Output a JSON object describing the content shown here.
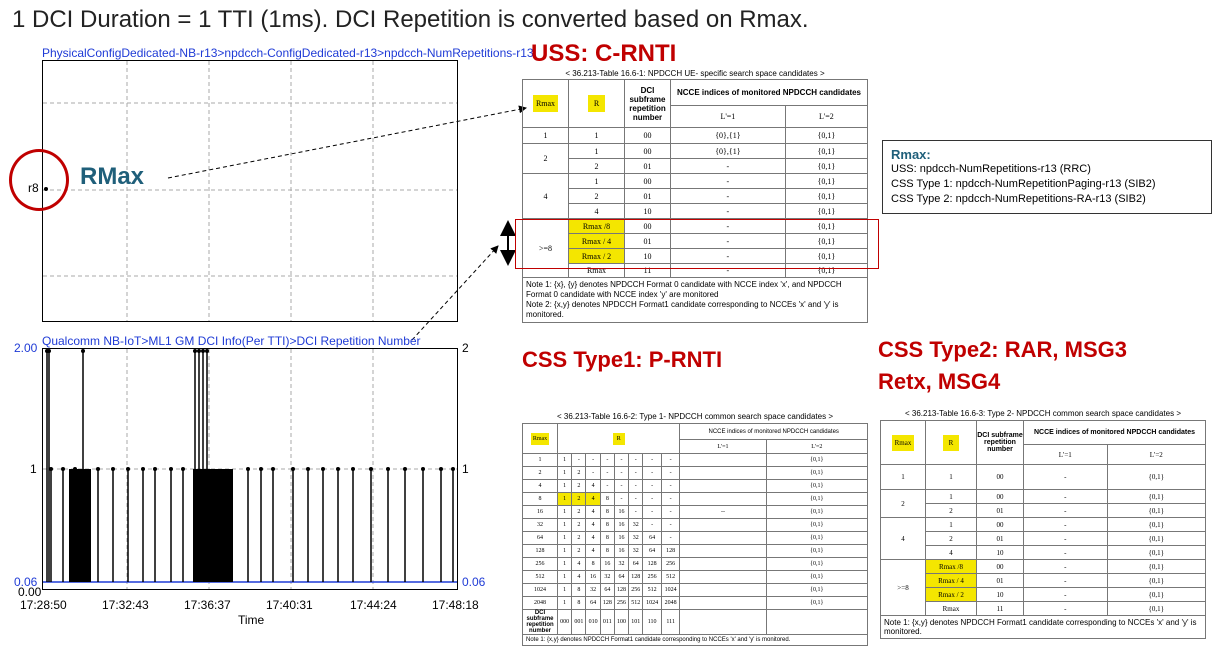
{
  "title": "1 DCI Duration = 1 TTI (1ms). DCI Repetition is converted based on Rmax.",
  "top_chart": {
    "path": "PhysicalConfigDedicated-NB-r13>npdcch-ConfigDedicated-r13>npdcch-NumRepetitions-r13",
    "y_label": "r8",
    "annotation": "RMax"
  },
  "bottom_chart": {
    "path": "Qualcomm NB-IoT>ML1 GM DCI Info(Per TTI)>DCI Repetition Number",
    "y_ticks_left": [
      "2.00",
      "1",
      "0.06",
      "0.00"
    ],
    "y_ticks_right": [
      "2",
      "1",
      "0.06"
    ],
    "x_ticks": [
      "17:28:50",
      "17:32:43",
      "17:36:37",
      "17:40:31",
      "17:44:24",
      "17:48:18"
    ],
    "x_label": "Time"
  },
  "chart_data": {
    "type": "line",
    "title": "",
    "xlabel": "Time",
    "ylabel": "",
    "ylim": [
      0,
      2
    ],
    "x_categories": [
      "17:28:50",
      "17:32:43",
      "17:36:37",
      "17:40:31",
      "17:44:24",
      "17:48:18"
    ],
    "series": [
      {
        "values_level": [
          2,
          1,
          0.06
        ]
      }
    ]
  },
  "uss": {
    "heading": "USS: C-RNTI",
    "caption": "< 36.213-Table 16.6-1: NPDCCH UE- specific search space candidates >",
    "h_rmax": "Rmax",
    "h_r": "R",
    "h_dci": "DCI subframe repetition number",
    "h_ncce": "NCCE indices of monitored NPDCCH candidates",
    "h_l1": "L'=1",
    "h_l2": "L'=2",
    "rows": [
      {
        "rmax": "1",
        "r": "1",
        "dci": "00",
        "l1": "{0},{1}",
        "l2": "{0,1}"
      },
      {
        "rmax": "2",
        "r": "1",
        "dci": "00",
        "l1": "{0},{1}",
        "l2": "{0,1}"
      },
      {
        "rmax": "",
        "r": "2",
        "dci": "01",
        "l1": "-",
        "l2": "{0,1}"
      },
      {
        "rmax": "4",
        "r": "1",
        "dci": "00",
        "l1": "-",
        "l2": "{0,1}"
      },
      {
        "rmax": "",
        "r": "2",
        "dci": "01",
        "l1": "-",
        "l2": "{0,1}"
      },
      {
        "rmax": "",
        "r": "4",
        "dci": "10",
        "l1": "-",
        "l2": "{0,1}"
      },
      {
        "rmax": ">=8",
        "r": "Rmax /8",
        "dci": "00",
        "l1": "-",
        "l2": "{0,1}"
      },
      {
        "rmax": "",
        "r": "Rmax / 4",
        "dci": "01",
        "l1": "-",
        "l2": "{0,1}"
      },
      {
        "rmax": "",
        "r": "Rmax / 2",
        "dci": "10",
        "l1": "-",
        "l2": "{0,1}"
      },
      {
        "rmax": "",
        "r": "Rmax",
        "dci": "11",
        "l1": "-",
        "l2": "{0,1}"
      }
    ],
    "note1_label": "Note 1:",
    "note1": "{x}, {y} denotes NPDCCH Format 0 candidate with NCCE index 'x', and NPDCCH Format 0 candidate with NCCE index 'y' are monitored",
    "note2_label": "Note 2:",
    "note2": "{x,y} denotes NPDCCH Format1 candidate corresponding to NCCEs 'x' and 'y' is monitored."
  },
  "rmax_box": {
    "title": "Rmax:",
    "line1": "USS: npdcch-NumRepetitions-r13 (RRC)",
    "line2": "CSS Type 1: npdcch-NumRepetitionPaging-r13 (SIB2)",
    "line3": "CSS Type 2: npdcch-NumRepetitions-RA-r13 (SIB2)"
  },
  "css1": {
    "heading": "CSS Type1: P-RNTI",
    "caption": "< 36.213-Table 16.6-2: Type 1- NPDCCH common search space candidates >",
    "h_rmax": "Rmax",
    "h_r": "R",
    "h_ncce": "NCCE indices of monitored NPDCCH candidates",
    "h_l1": "L'=1",
    "h_l2": "L'=2",
    "rows": [
      [
        "1",
        "1",
        "-",
        "-",
        "-",
        "-",
        "-",
        "-",
        "-",
        "",
        "{0,1}"
      ],
      [
        "2",
        "1",
        "2",
        "-",
        "-",
        "-",
        "-",
        "-",
        "-",
        "",
        "{0,1}"
      ],
      [
        "4",
        "1",
        "2",
        "4",
        "-",
        "-",
        "-",
        "-",
        "-",
        "",
        "{0,1}"
      ],
      [
        "8",
        "1",
        "2",
        "4",
        "8",
        "-",
        "-",
        "-",
        "-",
        "",
        "{0,1}"
      ],
      [
        "16",
        "1",
        "2",
        "4",
        "8",
        "16",
        "-",
        "-",
        "-",
        "--",
        "{0,1}"
      ],
      [
        "32",
        "1",
        "2",
        "4",
        "8",
        "16",
        "32",
        "-",
        "-",
        "",
        "{0,1}"
      ],
      [
        "64",
        "1",
        "2",
        "4",
        "8",
        "16",
        "32",
        "64",
        "-",
        "",
        "{0,1}"
      ],
      [
        "128",
        "1",
        "2",
        "4",
        "8",
        "16",
        "32",
        "64",
        "128",
        "",
        "{0,1}"
      ],
      [
        "256",
        "1",
        "4",
        "8",
        "16",
        "32",
        "64",
        "128",
        "256",
        "",
        "{0,1}"
      ],
      [
        "512",
        "1",
        "4",
        "16",
        "32",
        "64",
        "128",
        "256",
        "512",
        "",
        "{0,1}"
      ],
      [
        "1024",
        "1",
        "8",
        "32",
        "64",
        "128",
        "256",
        "512",
        "1024",
        "",
        "{0,1}"
      ],
      [
        "2048",
        "1",
        "8",
        "64",
        "128",
        "256",
        "512",
        "1024",
        "2048",
        "",
        "{0,1}"
      ]
    ],
    "dci_label": "DCI subframe repetition number",
    "dci_codes": [
      "000",
      "001",
      "010",
      "011",
      "100",
      "101",
      "110",
      "111"
    ],
    "note1_label": "Note 1:",
    "note1": "{x,y} denotes NPDCCH Format1 candidate corresponding to NCCEs 'x' and 'y' is monitored."
  },
  "css2": {
    "heading1": "CSS Type2: RAR, MSG3",
    "heading2": "Retx, MSG4",
    "caption": "< 36.213-Table 16.6-3: Type 2- NPDCCH common search space candidates >",
    "h_rmax": "Rmax",
    "h_r": "R",
    "h_dci": "DCI subframe repetition number",
    "h_ncce": "NCCE indices of monitored NPDCCH candidates",
    "h_l1": "L'=1",
    "h_l2": "L'=2",
    "rows": [
      {
        "rmax": "1",
        "r": "1",
        "dci": "00",
        "l1": "-",
        "l2": "{0,1}"
      },
      {
        "rmax": "2",
        "r": "1",
        "dci": "00",
        "l1": "-",
        "l2": "{0,1}"
      },
      {
        "rmax": "",
        "r": "2",
        "dci": "01",
        "l1": "-",
        "l2": "{0,1}"
      },
      {
        "rmax": "4",
        "r": "1",
        "dci": "00",
        "l1": "-",
        "l2": "{0,1}"
      },
      {
        "rmax": "",
        "r": "2",
        "dci": "01",
        "l1": "-",
        "l2": "{0,1}"
      },
      {
        "rmax": "",
        "r": "4",
        "dci": "10",
        "l1": "-",
        "l2": "{0,1}"
      },
      {
        "rmax": ">=8",
        "r": "Rmax /8",
        "dci": "00",
        "l1": "-",
        "l2": "{0,1}"
      },
      {
        "rmax": "",
        "r": "Rmax / 4",
        "dci": "01",
        "l1": "-",
        "l2": "{0,1}"
      },
      {
        "rmax": "",
        "r": "Rmax / 2",
        "dci": "10",
        "l1": "-",
        "l2": "{0,1}"
      },
      {
        "rmax": "",
        "r": "Rmax",
        "dci": "11",
        "l1": "-",
        "l2": "{0,1}"
      }
    ],
    "note1_label": "Note 1:",
    "note1": "{x,y} denotes NPDCCH Format1 candidate corresponding to NCCEs 'x' and 'y' is monitored."
  },
  "colors": {
    "heading_red": "#c00000",
    "path_blue": "#1f3bd6",
    "rmax_teal": "#1f5f7a",
    "highlight": "#f4e600",
    "circle_red": "#c00000"
  }
}
